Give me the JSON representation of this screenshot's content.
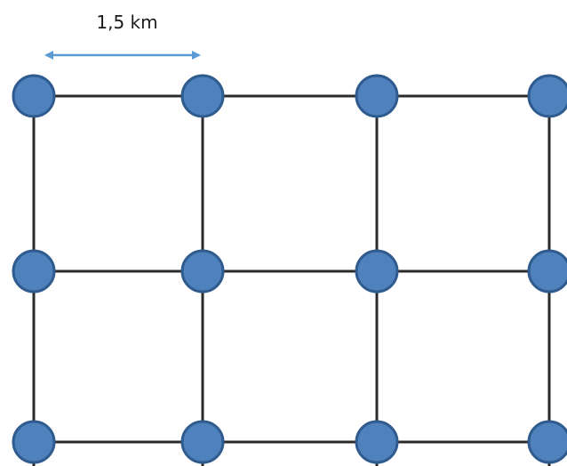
{
  "scale": {
    "label": "1,5 km"
  },
  "grid": {
    "columns": 4,
    "rows": 3
  },
  "colors": {
    "node_fill": "#4f81bd",
    "node_stroke": "#2f5b8f",
    "line": "#2b2b2b",
    "arrow": "#5b9bd5"
  }
}
